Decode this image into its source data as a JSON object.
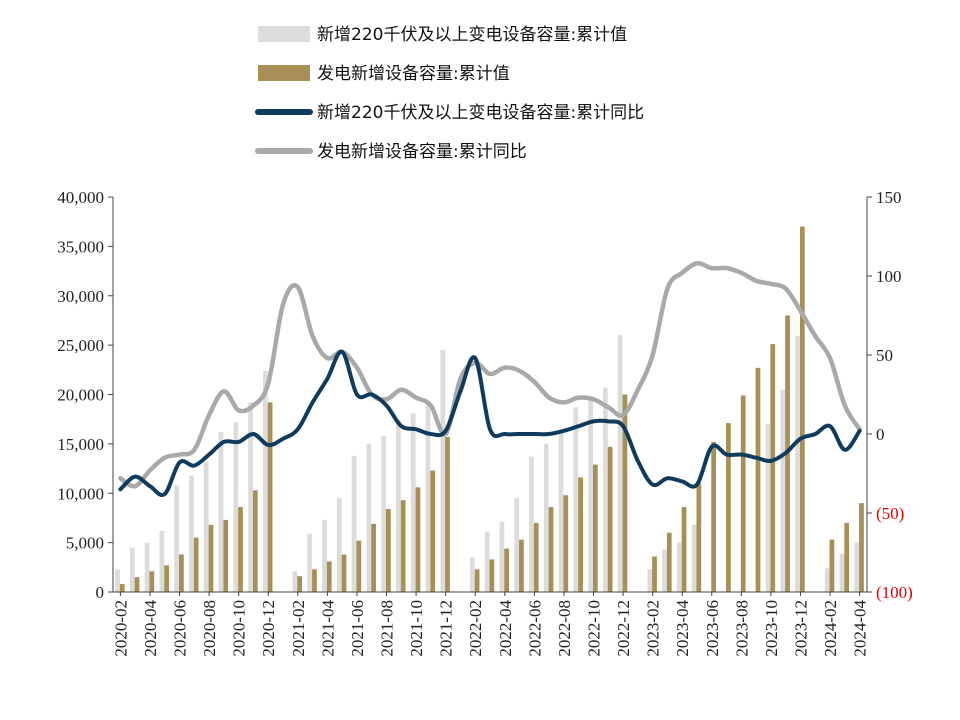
{
  "chart_data": {
    "type": "bar",
    "categories": [
      "2020-02",
      "2020-03",
      "2020-04",
      "2020-05",
      "2020-06",
      "2020-07",
      "2020-08",
      "2020-09",
      "2020-10",
      "2020-11",
      "2020-12",
      "2021-01",
      "2021-02",
      "2021-03",
      "2021-04",
      "2021-05",
      "2021-06",
      "2021-07",
      "2021-08",
      "2021-09",
      "2021-10",
      "2021-11",
      "2021-12",
      "2022-01",
      "2022-02",
      "2022-03",
      "2022-04",
      "2022-05",
      "2022-06",
      "2022-07",
      "2022-08",
      "2022-09",
      "2022-10",
      "2022-11",
      "2022-12",
      "2023-01",
      "2023-02",
      "2023-03",
      "2023-04",
      "2023-05",
      "2023-06",
      "2023-07",
      "2023-08",
      "2023-09",
      "2023-10",
      "2023-11",
      "2023-12",
      "2024-01",
      "2024-02",
      "2024-03",
      "2024-04"
    ],
    "x_tick_labels": [
      "2020-02",
      "2020-04",
      "2020-06",
      "2020-08",
      "2020-10",
      "2020-12",
      "2021-02",
      "2021-04",
      "2021-06",
      "2021-08",
      "2021-10",
      "2021-12",
      "2022-02",
      "2022-04",
      "2022-06",
      "2022-08",
      "2022-10",
      "2022-12",
      "2023-02",
      "2023-04",
      "2023-06",
      "2023-08",
      "2023-10",
      "2023-12",
      "2024-02",
      "2024-04"
    ],
    "y_left": {
      "min": 0,
      "max": 40000,
      "ticks": [
        0,
        5000,
        10000,
        15000,
        20000,
        25000,
        30000,
        35000,
        40000
      ],
      "tick_labels": [
        "0",
        "5,000",
        "10,000",
        "15,000",
        "20,000",
        "25,000",
        "30,000",
        "35,000",
        "40,000"
      ]
    },
    "y_right": {
      "min": -100,
      "max": 150,
      "ticks": [
        -100,
        -50,
        0,
        50,
        100,
        150
      ],
      "tick_labels": [
        "(100)",
        "(50)",
        "0",
        "50",
        "100",
        "150"
      ]
    },
    "series": [
      {
        "name": "新增220千伏及以上变电设备容量:累计值",
        "kind": "bar",
        "axis": "left",
        "color": "#dcdcdc",
        "values": [
          2300,
          4500,
          5000,
          6200,
          10800,
          11800,
          13200,
          16200,
          17200,
          19200,
          22400,
          null,
          2100,
          5900,
          7300,
          9500,
          13800,
          15000,
          15800,
          17400,
          18100,
          19300,
          24500,
          null,
          3500,
          6100,
          7100,
          9500,
          13700,
          15000,
          16300,
          18700,
          19400,
          20700,
          26000,
          null,
          2300,
          4300,
          5000,
          6800,
          null,
          null,
          null,
          null,
          17000,
          20500,
          25900,
          null,
          2400,
          3900,
          5000
        ]
      },
      {
        "name": "发电新增设备容量:累计值",
        "kind": "bar",
        "axis": "left",
        "color": "#a88f55",
        "values": [
          800,
          1500,
          2100,
          2700,
          3800,
          5500,
          6800,
          7300,
          8600,
          10300,
          19200,
          null,
          1600,
          2300,
          3100,
          3800,
          5200,
          6900,
          8400,
          9300,
          10600,
          12300,
          15700,
          null,
          2300,
          3300,
          4400,
          5300,
          7000,
          8600,
          9800,
          11600,
          12900,
          14700,
          20000,
          null,
          3600,
          6000,
          8600,
          11000,
          15200,
          17100,
          19900,
          22700,
          25100,
          28000,
          37000,
          null,
          5300,
          7000,
          9000
        ]
      },
      {
        "name": "新增220千伏及以上变电设备容量:累计同比",
        "kind": "line",
        "axis": "right",
        "color": "#0e3b5e",
        "values": [
          -35,
          -27,
          -33,
          -38,
          -18,
          -20,
          -13,
          -5,
          -5,
          0,
          -7,
          -3,
          3,
          20,
          35,
          52,
          25,
          25,
          18,
          5,
          3,
          0,
          2,
          27,
          48,
          3,
          0,
          0,
          0,
          0,
          2,
          5,
          8,
          8,
          5,
          -17,
          -32,
          -28,
          -30,
          -32,
          -8,
          -13,
          -13,
          -15,
          -17,
          -12,
          -3,
          0,
          5,
          -10,
          2
        ]
      },
      {
        "name": "发电新增设备容量:累计同比",
        "kind": "line",
        "axis": "right",
        "color": "#a9a9a9",
        "values": [
          -28,
          -33,
          -23,
          -15,
          -13,
          -10,
          12,
          27,
          15,
          18,
          32,
          82,
          93,
          62,
          48,
          52,
          42,
          25,
          22,
          28,
          23,
          18,
          0,
          35,
          45,
          38,
          42,
          40,
          33,
          23,
          20,
          23,
          22,
          17,
          12,
          28,
          50,
          92,
          102,
          108,
          105,
          105,
          102,
          97,
          95,
          92,
          78,
          62,
          48,
          18,
          3
        ]
      }
    ],
    "legend_position": "top"
  }
}
